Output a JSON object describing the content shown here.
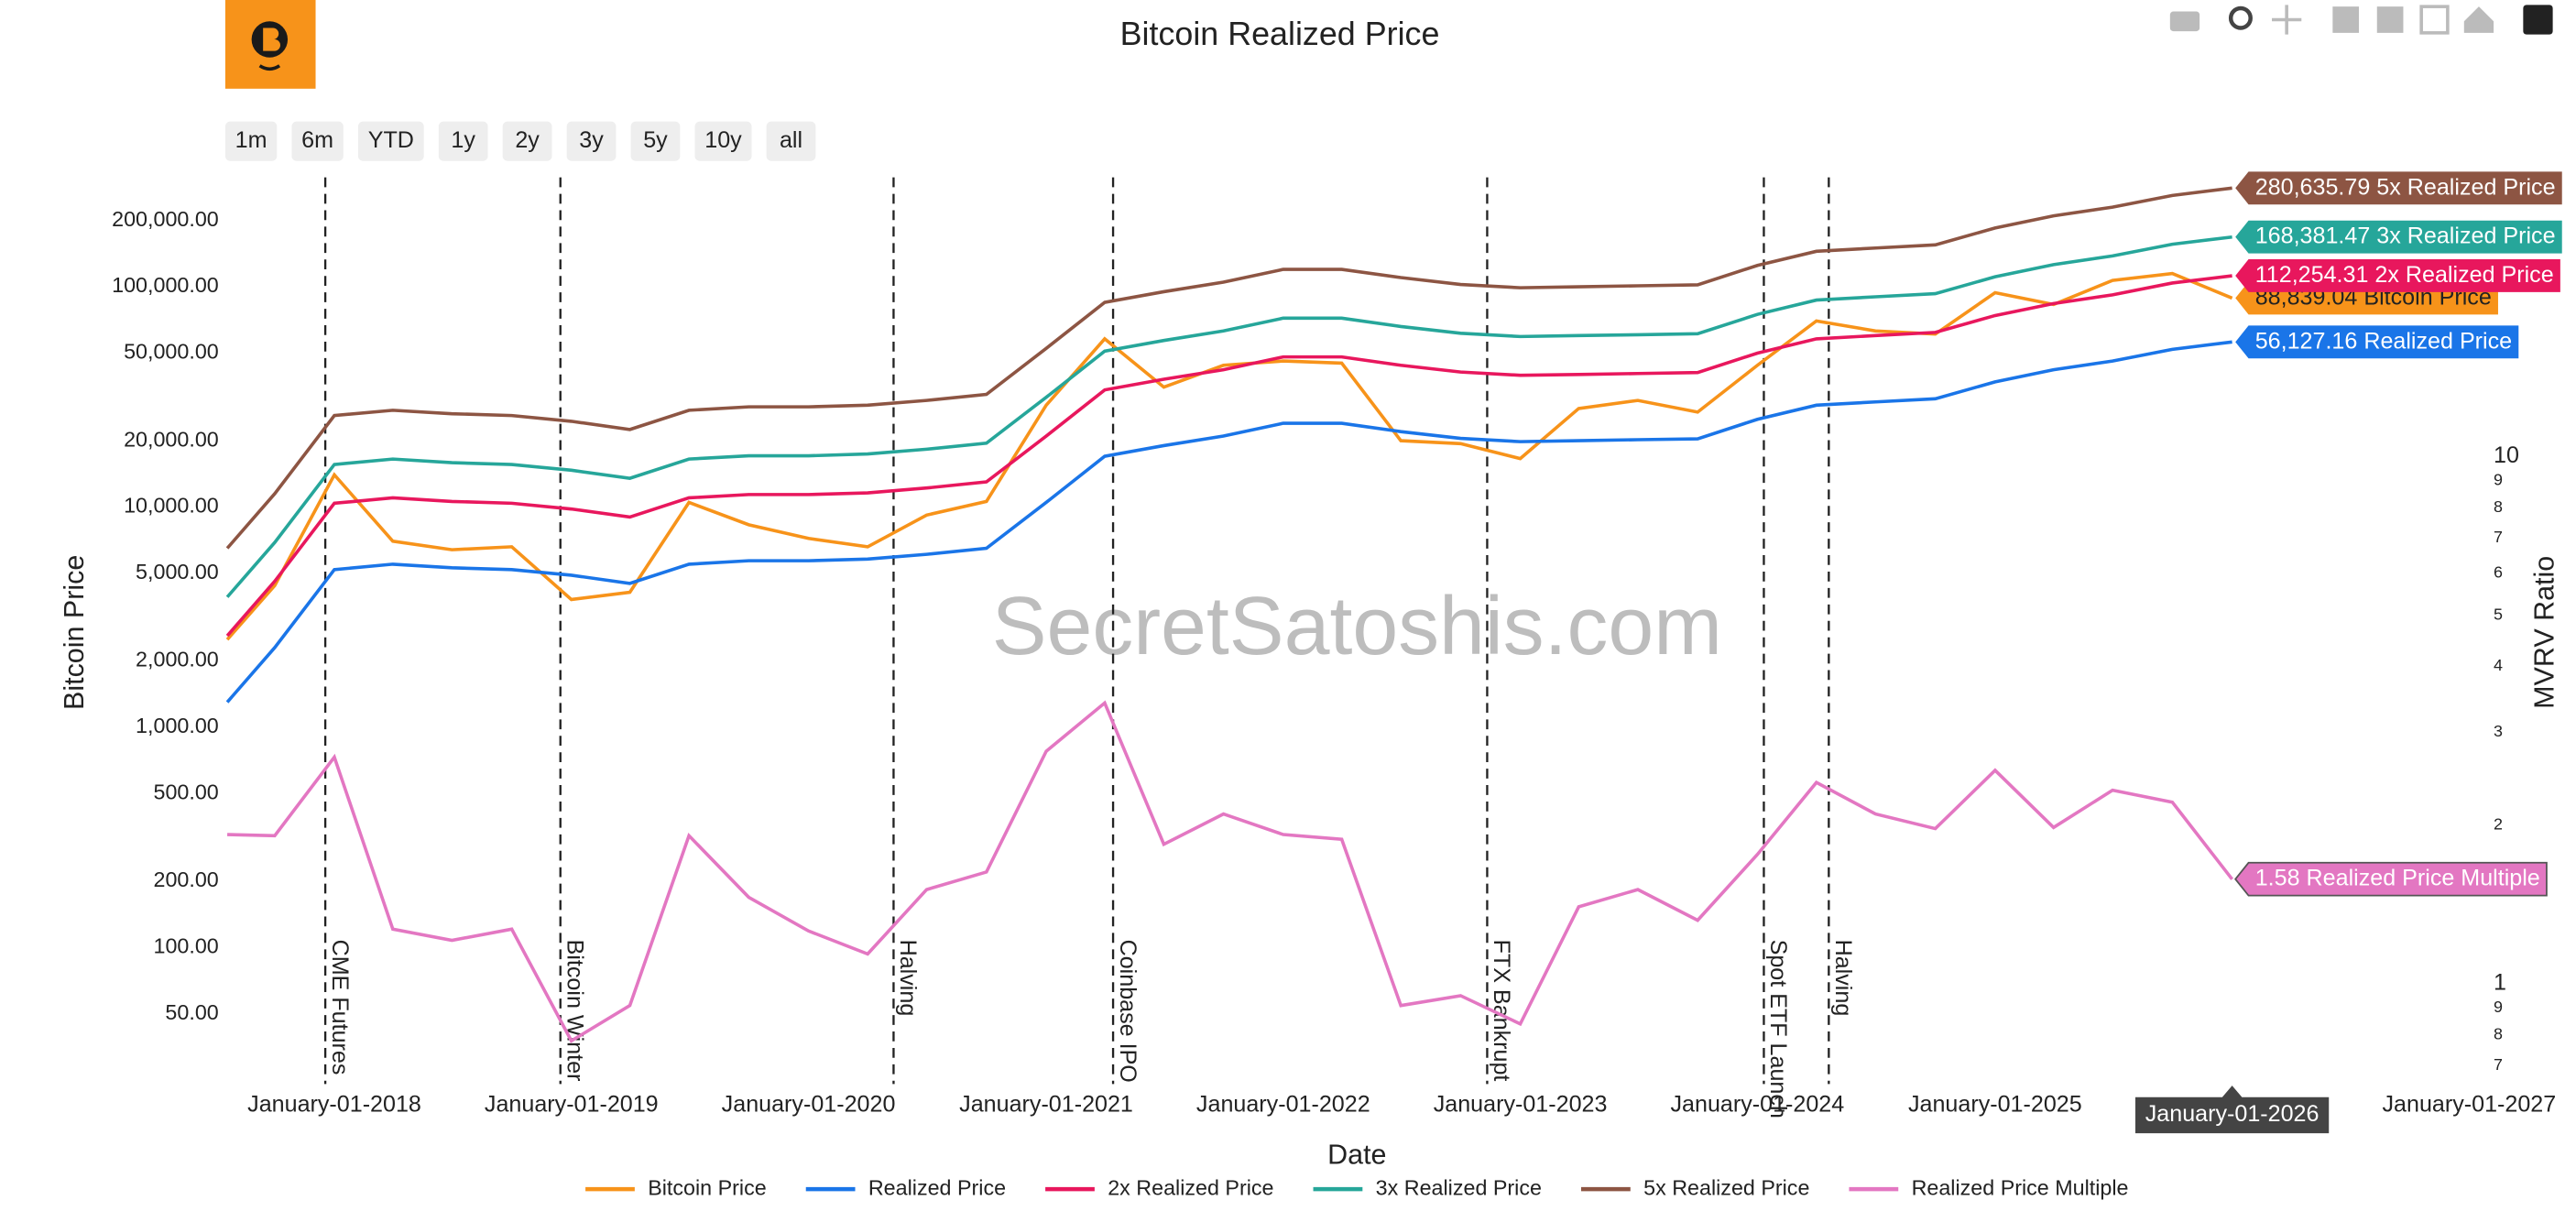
{
  "range_buttons": [
    "1m",
    "6m",
    "YTD",
    "1y",
    "2y",
    "3y",
    "5y",
    "10y",
    "all"
  ],
  "watermark": "SecretSatoshis.com",
  "chart_data": {
    "type": "line",
    "title": "Bitcoin Realized Price",
    "xlabel": "Date",
    "ylabel": "Bitcoin Price",
    "y2label": "MVRV Ratio",
    "ylog": true,
    "y2log": true,
    "x": [
      "2017-07-20",
      "2017-10-01",
      "2018-01-01",
      "2018-04-01",
      "2018-07-01",
      "2018-10-01",
      "2019-01-01",
      "2019-04-01",
      "2019-07-01",
      "2019-10-01",
      "2020-01-01",
      "2020-04-01",
      "2020-07-01",
      "2020-10-01",
      "2021-01-01",
      "2021-04-01",
      "2021-07-01",
      "2021-10-01",
      "2022-01-01",
      "2022-04-01",
      "2022-07-01",
      "2022-10-01",
      "2023-01-01",
      "2023-04-01",
      "2023-07-01",
      "2023-10-01",
      "2024-01-01",
      "2024-04-01",
      "2024-07-01",
      "2024-10-01",
      "2025-01-01",
      "2025-04-01",
      "2025-07-01",
      "2025-10-01",
      "2026-01-01"
    ],
    "xlim": [
      "2017-07-17",
      "2027-03-10"
    ],
    "xticks": [
      {
        "value": "2018-01-01",
        "label": "January-01-2018"
      },
      {
        "value": "2019-01-01",
        "label": "January-01-2019"
      },
      {
        "value": "2020-01-01",
        "label": "January-01-2020"
      },
      {
        "value": "2021-01-01",
        "label": "January-01-2021"
      },
      {
        "value": "2022-01-01",
        "label": "January-01-2022"
      },
      {
        "value": "2023-01-01",
        "label": "January-01-2023"
      },
      {
        "value": "2024-01-01",
        "label": "January-01-2024"
      },
      {
        "value": "2025-01-01",
        "label": "January-01-2025"
      },
      {
        "value": "2027-01-01",
        "label": "January-01-2027"
      }
    ],
    "hover_label": {
      "x": "2026-01-01",
      "text": "January-01-2026"
    },
    "ylim": [
      24,
      360000
    ],
    "yticks": [
      {
        "value": 50,
        "label": "50.00"
      },
      {
        "value": 100,
        "label": "100.00"
      },
      {
        "value": 200,
        "label": "200.00"
      },
      {
        "value": 500,
        "label": "500.00"
      },
      {
        "value": 1000,
        "label": "1,000.00"
      },
      {
        "value": 2000,
        "label": "2,000.00"
      },
      {
        "value": 5000,
        "label": "5,000.00"
      },
      {
        "value": 10000,
        "label": "10,000.00"
      },
      {
        "value": 20000,
        "label": "20,000.00"
      },
      {
        "value": 50000,
        "label": "50,000.00"
      },
      {
        "value": 100000,
        "label": "100,000.00"
      },
      {
        "value": 200000,
        "label": "200,000.00"
      }
    ],
    "y2lim": [
      0.646,
      35.8
    ],
    "y2ticks": [
      {
        "value": 0.7,
        "label": "7"
      },
      {
        "value": 0.8,
        "label": "8"
      },
      {
        "value": 0.9,
        "label": "9"
      },
      1,
      2,
      3,
      4,
      5,
      6,
      7,
      8,
      9,
      10
    ],
    "series": [
      {
        "name": "Bitcoin Price",
        "color": "#f7931a",
        "end_label": "88,839.04",
        "values": [
          2500,
          4400,
          14000,
          7000,
          6400,
          6600,
          3800,
          4100,
          10500,
          8300,
          7200,
          6600,
          9200,
          10600,
          29000,
          58000,
          35000,
          44000,
          46000,
          45000,
          20000,
          19400,
          16600,
          28000,
          30500,
          27000,
          44000,
          70000,
          63000,
          61000,
          94000,
          83000,
          107000,
          115000,
          88839.04
        ]
      },
      {
        "name": "Realized Price",
        "color": "#1a75e8",
        "end_label": "56,127.16",
        "values": [
          1300,
          2300,
          5200,
          5500,
          5300,
          5200,
          4900,
          4500,
          5500,
          5700,
          5700,
          5800,
          6100,
          6500,
          10500,
          17000,
          19000,
          21000,
          24000,
          24000,
          22000,
          20500,
          19800,
          20000,
          20200,
          20400,
          25000,
          29000,
          30000,
          31000,
          37000,
          42000,
          46000,
          52000,
          56127.16
        ]
      },
      {
        "name": "2x Realized Price",
        "color": "#e8175d",
        "end_label": "112,254.31",
        "values": [
          2600,
          4600,
          10400,
          11000,
          10600,
          10400,
          9800,
          9000,
          11000,
          11400,
          11400,
          11600,
          12200,
          13000,
          21000,
          34000,
          38000,
          42000,
          48000,
          48000,
          44000,
          41000,
          39600,
          40000,
          40400,
          40800,
          50000,
          58000,
          60000,
          62000,
          74000,
          84000,
          92000,
          104000,
          112254.31
        ]
      },
      {
        "name": "3x Realized Price",
        "color": "#26a69a",
        "end_label": "168,381.47",
        "values": [
          3900,
          6900,
          15600,
          16500,
          15900,
          15600,
          14700,
          13500,
          16500,
          17100,
          17100,
          17400,
          18300,
          19500,
          31500,
          51000,
          57000,
          63000,
          72000,
          72000,
          66000,
          61500,
          59400,
          60000,
          60600,
          61200,
          75000,
          87000,
          90000,
          93000,
          111000,
          126000,
          138000,
          156000,
          168381.47
        ]
      },
      {
        "name": "5x Realized Price",
        "color": "#8d5543",
        "end_label": "280,635.79",
        "values": [
          6500,
          11500,
          26000,
          27500,
          26500,
          26000,
          24500,
          22500,
          27500,
          28500,
          28500,
          29000,
          30500,
          32500,
          52500,
          85000,
          95000,
          105000,
          120000,
          120000,
          110000,
          102500,
          99000,
          100000,
          101000,
          102000,
          125000,
          145000,
          150000,
          155000,
          185000,
          210000,
          230000,
          260000,
          280635.79
        ]
      },
      {
        "name": "Realized Price Multiple",
        "color": "#e377c2",
        "axis": "y2",
        "end_label": "1.58",
        "values": [
          1.92,
          1.91,
          2.69,
          1.27,
          1.21,
          1.27,
          0.78,
          0.91,
          1.91,
          1.46,
          1.26,
          1.14,
          1.51,
          1.63,
          2.76,
          3.41,
          1.84,
          2.1,
          1.92,
          1.88,
          0.91,
          0.95,
          0.84,
          1.4,
          1.51,
          1.32,
          1.76,
          2.41,
          2.1,
          1.97,
          2.54,
          1.98,
          2.33,
          2.21,
          1.58
        ]
      }
    ],
    "annotations": [
      {
        "x": "2017-12-18",
        "text": "CME Futures"
      },
      {
        "x": "2018-12-15",
        "text": "Bitcoin Winter"
      },
      {
        "x": "2020-05-11",
        "text": "Halving"
      },
      {
        "x": "2021-04-14",
        "text": "Coinbase IPO"
      },
      {
        "x": "2022-11-11",
        "text": "FTX Bankrupt"
      },
      {
        "x": "2024-01-11",
        "text": "Spot ETF Launch"
      },
      {
        "x": "2024-04-20",
        "text": "Halving"
      }
    ]
  }
}
